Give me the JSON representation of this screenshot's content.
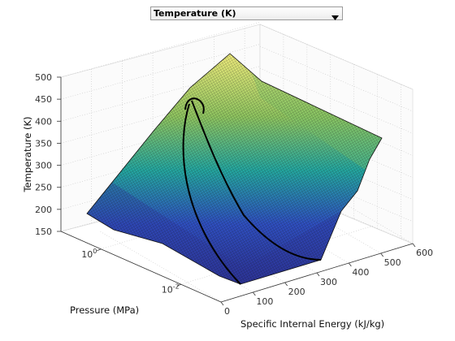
{
  "selector": {
    "selected": "Temperature (K)"
  },
  "colors": {
    "low": "#2c2d8c",
    "mid": "#24a7a0",
    "high": "#f6ee7e",
    "mesh": "#0d0d0d",
    "axis": "#333333"
  },
  "chart_data": {
    "type": "surface",
    "title": "",
    "xlabel": "Specific Internal Energy (kJ/kg)",
    "ylabel": "Pressure (MPa)",
    "zlabel": "Temperature (K)",
    "xlim": [
      0,
      600
    ],
    "ylim_log10": [
      -3,
      1
    ],
    "zlim": [
      150,
      500
    ],
    "x_ticks": [
      "0",
      "100",
      "200",
      "300",
      "400",
      "500",
      "600"
    ],
    "y_ticks": [
      {
        "base": "10",
        "exp": "-2"
      },
      {
        "base": "10",
        "exp": "0"
      }
    ],
    "z_ticks": [
      "150",
      "200",
      "250",
      "300",
      "350",
      "400",
      "450",
      "500"
    ],
    "y_scale": "log",
    "grid": true,
    "colormap": "parula",
    "surface_peak": {
      "x": 240,
      "y_log10": 1,
      "z": 482
    },
    "two_phase_dome_peak": {
      "x": 230,
      "y_log10": 0.8,
      "z": 455
    }
  }
}
